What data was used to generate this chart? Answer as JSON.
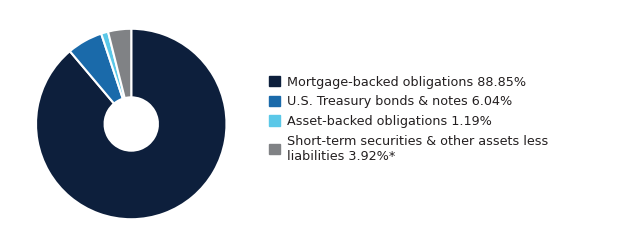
{
  "slices": [
    88.85,
    6.04,
    1.19,
    3.92
  ],
  "colors": [
    "#0d1f3c",
    "#1a6aaa",
    "#5bc8e8",
    "#808285"
  ],
  "labels": [
    "Mortgage-backed obligations 88.85%",
    "U.S. Treasury bonds & notes 6.04%",
    "Asset-backed obligations 1.19%",
    "Short-term securities & other assets less\nliabilities 3.92%*"
  ],
  "startangle": 90,
  "background_color": "#ffffff",
  "wedge_edge_color": "#ffffff",
  "wedge_linewidth": 1.5,
  "donut_width": 0.72,
  "legend_fontsize": 9.2,
  "text_color": "#231f20"
}
